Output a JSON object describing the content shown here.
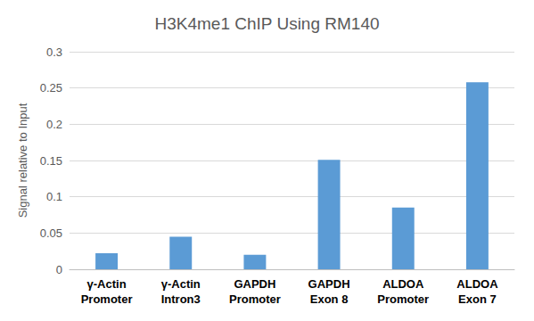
{
  "chart_data": {
    "type": "bar",
    "title": "H3K4me1 ChIP Using RM140",
    "y_label": "Signal relative to Input",
    "categories": [
      "γ-Actin\nPromoter",
      "γ-Actin\nIntron3",
      "GAPDH\nPromoter",
      "GAPDH\nExon 8",
      "ALDOA\nPromoter",
      "ALDOA\nExon 7"
    ],
    "values": [
      0.022,
      0.045,
      0.02,
      0.151,
      0.085,
      0.258
    ],
    "color": "#5b9bd5",
    "ylim": [
      0,
      0.3
    ],
    "yticks": [
      0,
      0.05,
      0.1,
      0.15,
      0.2,
      0.25,
      0.3
    ],
    "grid": true
  }
}
